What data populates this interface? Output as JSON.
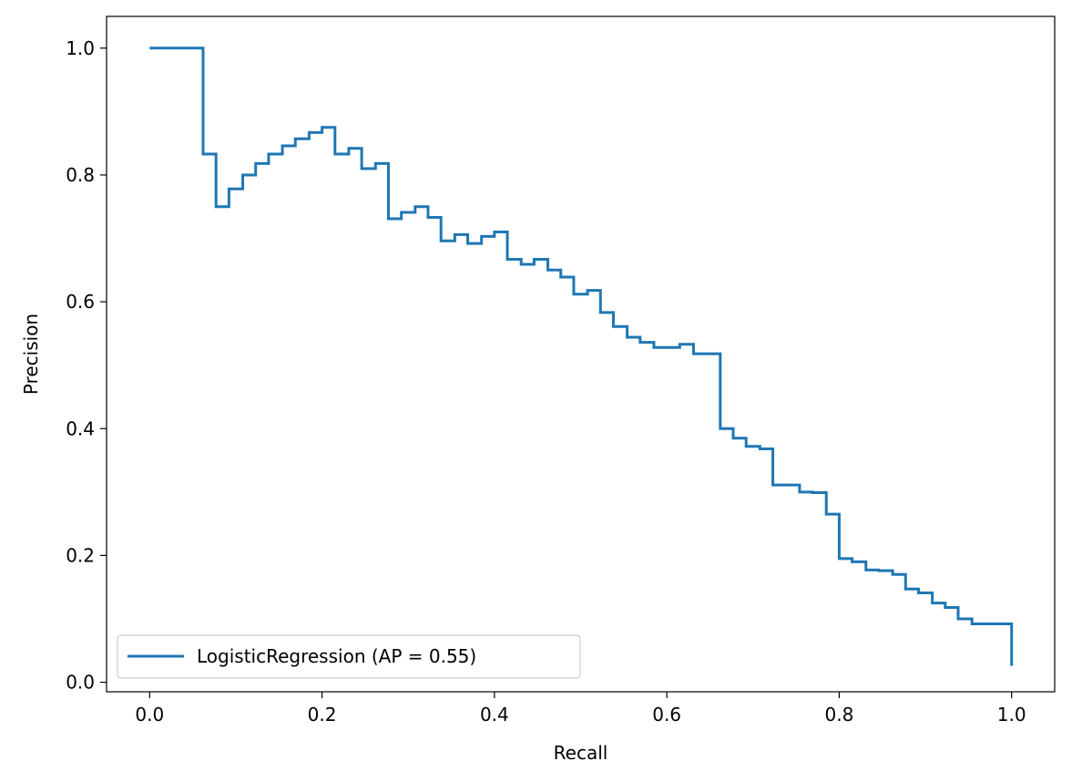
{
  "chart_data": {
    "type": "line",
    "title": "",
    "xlabel": "Recall",
    "ylabel": "Precision",
    "xlim": [
      -0.05,
      1.05
    ],
    "ylim": [
      -0.015,
      1.05
    ],
    "xticks": [
      0.0,
      0.2,
      0.4,
      0.6,
      0.8,
      1.0
    ],
    "xtick_labels": [
      "0.0",
      "0.2",
      "0.4",
      "0.6",
      "0.8",
      "1.0"
    ],
    "yticks": [
      0.0,
      0.2,
      0.4,
      0.6,
      0.8,
      1.0
    ],
    "ytick_labels": [
      "0.0",
      "0.2",
      "0.4",
      "0.6",
      "0.8",
      "1.0"
    ],
    "grid": false,
    "legend_position": "lower-left",
    "series": [
      {
        "name": "LogisticRegression (AP = 0.55)",
        "color": "#1f77b4",
        "drawstyle": "steps-post",
        "x": [
          0.0,
          0.062,
          0.062,
          0.077,
          0.077,
          0.092,
          0.108,
          0.123,
          0.138,
          0.154,
          0.169,
          0.185,
          0.2,
          0.215,
          0.215,
          0.231,
          0.246,
          0.246,
          0.262,
          0.277,
          0.277,
          0.292,
          0.308,
          0.323,
          0.338,
          0.338,
          0.354,
          0.369,
          0.385,
          0.4,
          0.415,
          0.415,
          0.431,
          0.446,
          0.462,
          0.477,
          0.492,
          0.508,
          0.523,
          0.538,
          0.554,
          0.569,
          0.585,
          0.6,
          0.615,
          0.631,
          0.646,
          0.662,
          0.677,
          0.692,
          0.708,
          0.723,
          0.738,
          0.754,
          0.769,
          0.785,
          0.8,
          0.815,
          0.831,
          0.846,
          0.862,
          0.877,
          0.892,
          0.908,
          0.923,
          0.938,
          0.954,
          1.0
        ],
        "y": [
          1.0,
          1.0,
          0.833,
          0.833,
          0.75,
          0.778,
          0.8,
          0.818,
          0.833,
          0.846,
          0.857,
          0.867,
          0.875,
          0.875,
          0.833,
          0.842,
          0.842,
          0.81,
          0.818,
          0.818,
          0.731,
          0.741,
          0.75,
          0.733,
          0.733,
          0.696,
          0.706,
          0.692,
          0.703,
          0.71,
          0.71,
          0.667,
          0.659,
          0.667,
          0.65,
          0.639,
          0.612,
          0.618,
          0.583,
          0.561,
          0.544,
          0.536,
          0.528,
          0.528,
          0.533,
          0.518,
          0.518,
          0.4,
          0.385,
          0.372,
          0.368,
          0.311,
          0.311,
          0.3,
          0.299,
          0.265,
          0.195,
          0.19,
          0.177,
          0.176,
          0.17,
          0.147,
          0.141,
          0.125,
          0.118,
          0.1,
          0.092,
          0.026
        ]
      }
    ]
  }
}
